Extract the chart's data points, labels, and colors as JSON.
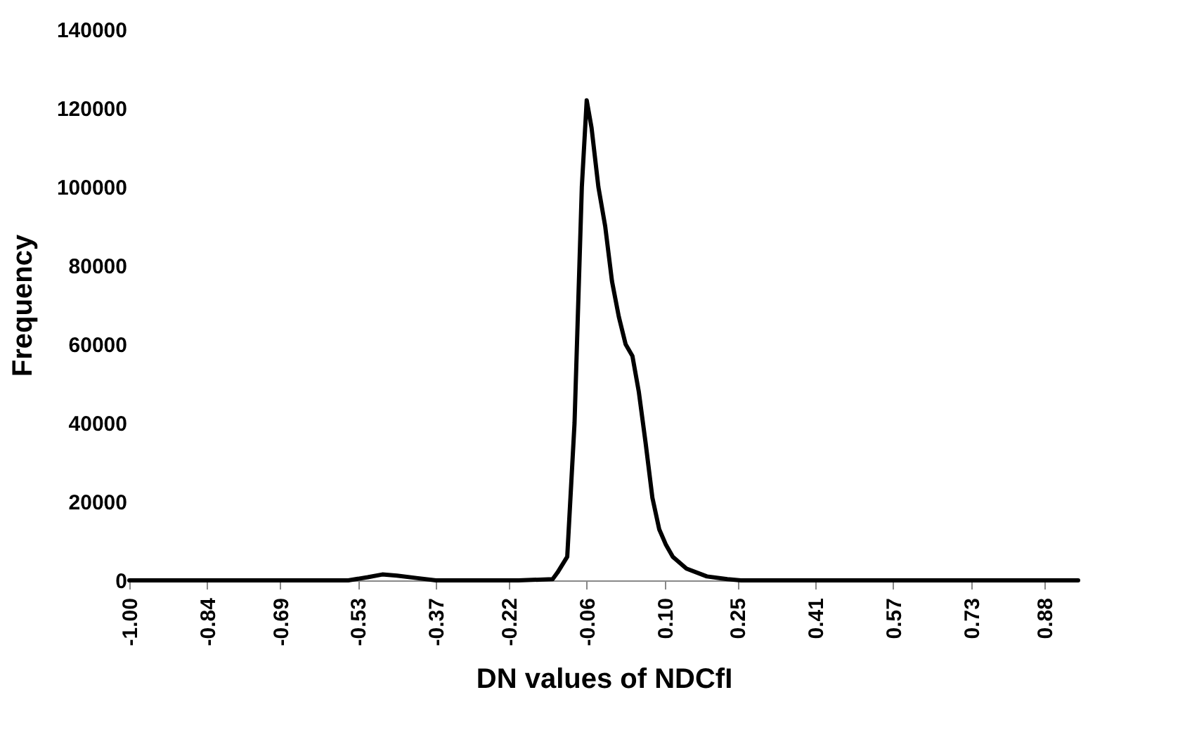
{
  "chart_data": {
    "type": "line",
    "xlabel": "DN values of NDCfI",
    "ylabel": "Frequency",
    "x": [
      -1.0,
      -0.7,
      -0.55,
      -0.51,
      -0.48,
      -0.45,
      -0.41,
      -0.37,
      -0.2,
      -0.13,
      -0.12,
      -0.1,
      -0.085,
      -0.07,
      -0.06,
      -0.05,
      -0.036,
      -0.022,
      -0.008,
      0.006,
      0.02,
      0.034,
      0.047,
      0.061,
      0.075,
      0.089,
      0.103,
      0.117,
      0.145,
      0.187,
      0.229,
      0.257,
      0.5,
      0.95
    ],
    "series": [
      {
        "color": "#000000",
        "values": [
          0,
          0,
          0,
          800,
          1500,
          1200,
          600,
          0,
          0,
          300,
          2000,
          6000,
          40000,
          100000,
          122000,
          115000,
          100000,
          90000,
          76000,
          67000,
          60000,
          57000,
          48000,
          35000,
          21000,
          13000,
          9000,
          6000,
          3000,
          1000,
          300,
          0,
          0,
          0
        ]
      }
    ],
    "xlim": [
      -1.0,
      0.95
    ],
    "xticks": [
      {
        "value": -1.0,
        "label": "-1.00"
      },
      -0.84,
      -0.69,
      -0.53,
      -0.37,
      -0.22,
      -0.06,
      {
        "value": 0.1,
        "label": "0.10"
      },
      0.25,
      0.41,
      0.57,
      0.73,
      0.88
    ],
    "ylim": [
      0,
      140000
    ],
    "yticks": [
      0,
      20000,
      40000,
      60000,
      80000,
      100000,
      120000,
      140000
    ],
    "grid": false,
    "marker": "none",
    "line_style": "solid"
  }
}
